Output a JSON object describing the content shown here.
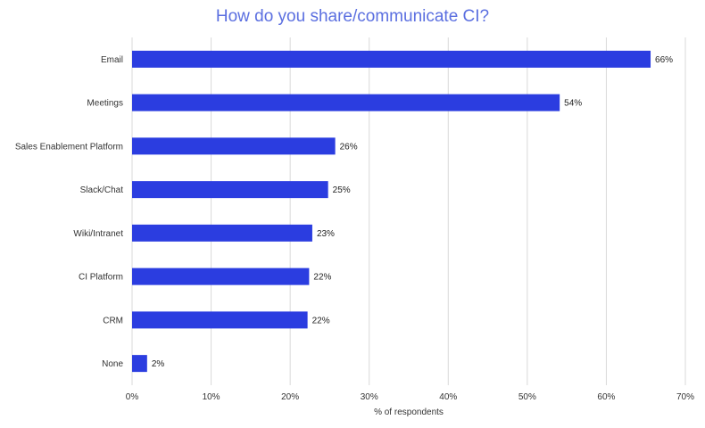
{
  "chart_data": {
    "type": "bar",
    "orientation": "horizontal",
    "title": "How do you share/communicate CI?",
    "xlabel": "% of respondents",
    "ylabel": "",
    "categories": [
      "Email",
      "Meetings",
      "Sales Enablement Platform",
      "Slack/Chat",
      "Wiki/Intranet",
      "CI Platform",
      "CRM",
      "None"
    ],
    "values": [
      66,
      54,
      26,
      25,
      23,
      22,
      22,
      2
    ],
    "bar_values": [
      65.6,
      54.1,
      25.7,
      24.8,
      22.8,
      22.4,
      22.2,
      1.9
    ],
    "data_labels": [
      "66%",
      "54%",
      "26%",
      "25%",
      "23%",
      "22%",
      "22%",
      "2%"
    ],
    "xlim": [
      0,
      70
    ],
    "xticks": [
      0,
      10,
      20,
      30,
      40,
      50,
      60,
      70
    ],
    "xtick_labels": [
      "0%",
      "10%",
      "20%",
      "30%",
      "40%",
      "50%",
      "60%",
      "70%"
    ],
    "grid": true,
    "legend": "none",
    "bar_color": "#2b3de0",
    "grid_color": "#d9d9d9"
  }
}
